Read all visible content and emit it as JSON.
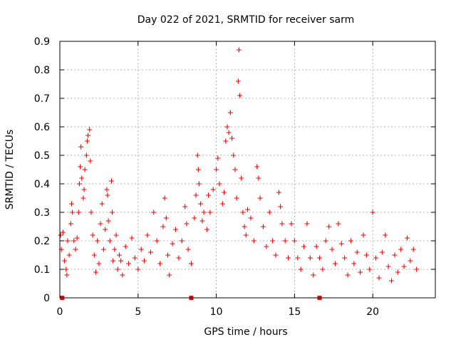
{
  "chart_data": {
    "type": "scatter",
    "title": "Day 022 of 2021, SRMTID for receiver sarm",
    "xlabel": "GPS time / hours",
    "ylabel": "SRMTID / TECUs",
    "xlim": [
      0,
      24
    ],
    "ylim": [
      0,
      0.9
    ],
    "x_ticks": [
      0,
      5,
      10,
      15,
      20
    ],
    "y_ticks": [
      0,
      0.1,
      0.2,
      0.3,
      0.4,
      0.5,
      0.6,
      0.7,
      0.8,
      0.9
    ],
    "x_tick_labels": [
      "0",
      "5",
      "10",
      "15",
      "20"
    ],
    "y_tick_labels": [
      "0",
      "0.1",
      "0.2",
      "0.3",
      "0.4",
      "0.5",
      "0.6",
      "0.7",
      "0.8",
      "0.9"
    ],
    "grid": true,
    "marker": "plus",
    "color": "#ff0000",
    "series": [
      {
        "name": "SRMTID",
        "points": [
          [
            0.05,
            0.22
          ],
          [
            0.1,
            0.17
          ],
          [
            0.2,
            0.23
          ],
          [
            0.3,
            0.13
          ],
          [
            0.4,
            0.1
          ],
          [
            0.45,
            0.08
          ],
          [
            0.5,
            0.2
          ],
          [
            0.6,
            0.15
          ],
          [
            0.7,
            0.26
          ],
          [
            0.75,
            0.33
          ],
          [
            0.8,
            0.3
          ],
          [
            0.9,
            0.2
          ],
          [
            1.0,
            0.17
          ],
          [
            1.1,
            0.21
          ],
          [
            1.2,
            0.3
          ],
          [
            1.25,
            0.4
          ],
          [
            1.3,
            0.46
          ],
          [
            1.35,
            0.53
          ],
          [
            1.4,
            0.42
          ],
          [
            1.5,
            0.35
          ],
          [
            1.55,
            0.38
          ],
          [
            1.6,
            0.45
          ],
          [
            1.7,
            0.5
          ],
          [
            1.75,
            0.55
          ],
          [
            1.8,
            0.57
          ],
          [
            1.9,
            0.59
          ],
          [
            1.95,
            0.48
          ],
          [
            2.0,
            0.3
          ],
          [
            2.1,
            0.22
          ],
          [
            2.2,
            0.15
          ],
          [
            2.3,
            0.09
          ],
          [
            2.4,
            0.2
          ],
          [
            2.5,
            0.12
          ],
          [
            2.6,
            0.26
          ],
          [
            2.7,
            0.33
          ],
          [
            2.8,
            0.17
          ],
          [
            2.9,
            0.24
          ],
          [
            3.0,
            0.38
          ],
          [
            3.05,
            0.36
          ],
          [
            3.1,
            0.27
          ],
          [
            3.2,
            0.2
          ],
          [
            3.3,
            0.41
          ],
          [
            3.35,
            0.3
          ],
          [
            3.4,
            0.13
          ],
          [
            3.5,
            0.17
          ],
          [
            3.6,
            0.22
          ],
          [
            3.7,
            0.1
          ],
          [
            3.8,
            0.15
          ],
          [
            3.9,
            0.13
          ],
          [
            4.0,
            0.08
          ],
          [
            4.2,
            0.18
          ],
          [
            4.4,
            0.12
          ],
          [
            4.6,
            0.21
          ],
          [
            4.8,
            0.14
          ],
          [
            5.0,
            0.1
          ],
          [
            5.2,
            0.17
          ],
          [
            5.4,
            0.13
          ],
          [
            5.6,
            0.22
          ],
          [
            5.8,
            0.16
          ],
          [
            6.0,
            0.3
          ],
          [
            6.2,
            0.2
          ],
          [
            6.4,
            0.12
          ],
          [
            6.6,
            0.25
          ],
          [
            6.7,
            0.35
          ],
          [
            6.8,
            0.28
          ],
          [
            6.9,
            0.15
          ],
          [
            7.0,
            0.08
          ],
          [
            7.2,
            0.19
          ],
          [
            7.4,
            0.24
          ],
          [
            7.6,
            0.14
          ],
          [
            7.8,
            0.2
          ],
          [
            8.0,
            0.32
          ],
          [
            8.1,
            0.26
          ],
          [
            8.2,
            0.17
          ],
          [
            8.4,
            0.12
          ],
          [
            8.6,
            0.28
          ],
          [
            8.7,
            0.36
          ],
          [
            8.8,
            0.5
          ],
          [
            8.85,
            0.45
          ],
          [
            8.9,
            0.4
          ],
          [
            9.0,
            0.33
          ],
          [
            9.1,
            0.27
          ],
          [
            9.2,
            0.3
          ],
          [
            9.4,
            0.24
          ],
          [
            9.5,
            0.36
          ],
          [
            9.6,
            0.3
          ],
          [
            9.8,
            0.38
          ],
          [
            10.0,
            0.45
          ],
          [
            10.1,
            0.49
          ],
          [
            10.2,
            0.4
          ],
          [
            10.4,
            0.33
          ],
          [
            10.5,
            0.37
          ],
          [
            10.6,
            0.55
          ],
          [
            10.7,
            0.6
          ],
          [
            10.8,
            0.58
          ],
          [
            10.9,
            0.65
          ],
          [
            11.0,
            0.56
          ],
          [
            11.1,
            0.5
          ],
          [
            11.2,
            0.45
          ],
          [
            11.3,
            0.35
          ],
          [
            11.4,
            0.76
          ],
          [
            11.45,
            0.87
          ],
          [
            11.5,
            0.71
          ],
          [
            11.6,
            0.42
          ],
          [
            11.7,
            0.3
          ],
          [
            11.8,
            0.25
          ],
          [
            11.9,
            0.22
          ],
          [
            12.0,
            0.31
          ],
          [
            12.2,
            0.28
          ],
          [
            12.4,
            0.2
          ],
          [
            12.6,
            0.46
          ],
          [
            12.7,
            0.42
          ],
          [
            12.8,
            0.35
          ],
          [
            13.0,
            0.25
          ],
          [
            13.2,
            0.18
          ],
          [
            13.4,
            0.3
          ],
          [
            13.6,
            0.2
          ],
          [
            13.8,
            0.15
          ],
          [
            14.0,
            0.37
          ],
          [
            14.1,
            0.32
          ],
          [
            14.2,
            0.26
          ],
          [
            14.4,
            0.2
          ],
          [
            14.6,
            0.14
          ],
          [
            14.8,
            0.26
          ],
          [
            15.0,
            0.2
          ],
          [
            15.2,
            0.14
          ],
          [
            15.4,
            0.1
          ],
          [
            15.6,
            0.18
          ],
          [
            15.8,
            0.26
          ],
          [
            16.0,
            0.14
          ],
          [
            16.2,
            0.08
          ],
          [
            16.4,
            0.18
          ],
          [
            16.6,
            0.14
          ],
          [
            16.8,
            0.1
          ],
          [
            17.0,
            0.2
          ],
          [
            17.2,
            0.25
          ],
          [
            17.4,
            0.17
          ],
          [
            17.6,
            0.12
          ],
          [
            17.8,
            0.26
          ],
          [
            18.0,
            0.19
          ],
          [
            18.2,
            0.14
          ],
          [
            18.4,
            0.08
          ],
          [
            18.6,
            0.2
          ],
          [
            18.8,
            0.12
          ],
          [
            19.0,
            0.16
          ],
          [
            19.2,
            0.09
          ],
          [
            19.4,
            0.22
          ],
          [
            19.6,
            0.15
          ],
          [
            19.8,
            0.1
          ],
          [
            20.0,
            0.3
          ],
          [
            20.2,
            0.14
          ],
          [
            20.4,
            0.07
          ],
          [
            20.6,
            0.16
          ],
          [
            20.8,
            0.22
          ],
          [
            21.0,
            0.11
          ],
          [
            21.2,
            0.06
          ],
          [
            21.4,
            0.15
          ],
          [
            21.6,
            0.09
          ],
          [
            21.8,
            0.17
          ],
          [
            22.0,
            0.11
          ],
          [
            22.2,
            0.21
          ],
          [
            22.4,
            0.13
          ],
          [
            22.6,
            0.17
          ],
          [
            22.8,
            0.1
          ]
        ]
      }
    ],
    "gap_markers_x": [
      0.15,
      8.4,
      16.6
    ]
  }
}
